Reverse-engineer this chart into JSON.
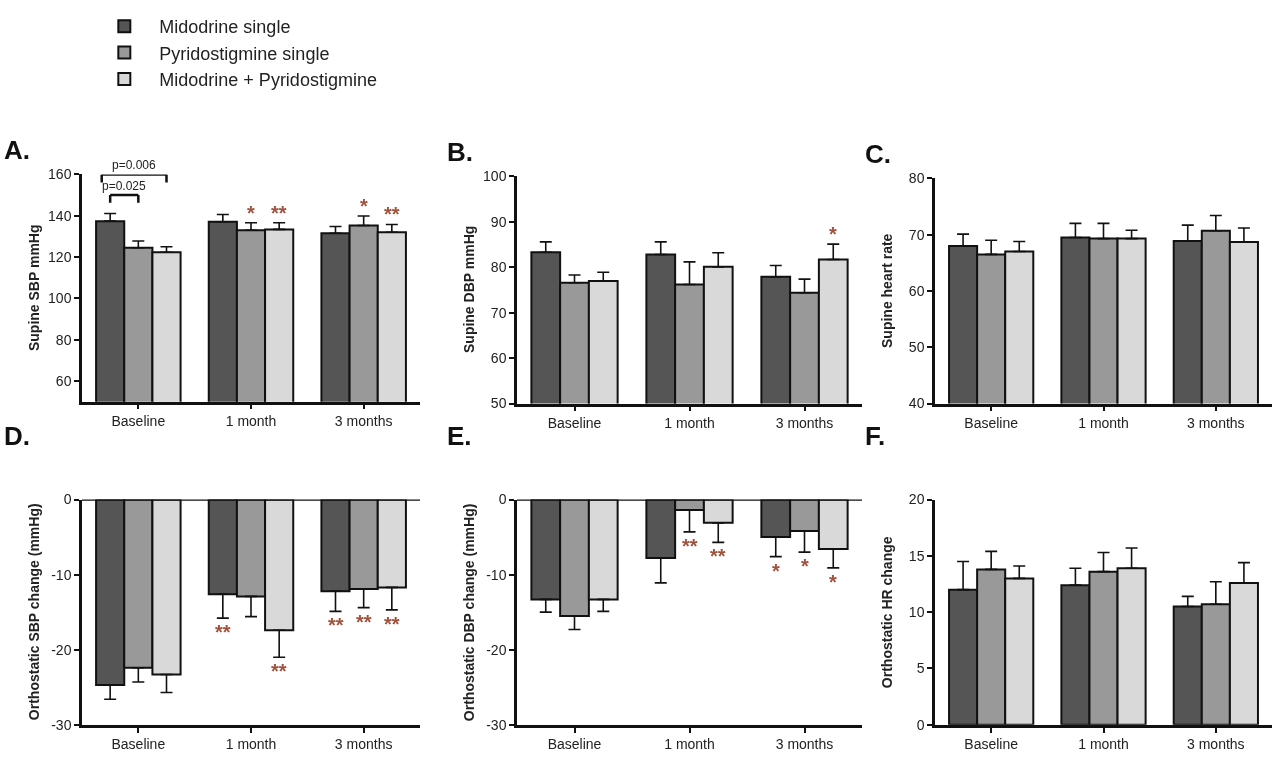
{
  "chart_data": [
    {
      "type": "bar",
      "title": "A.",
      "ylabel": "Supine SBP mmHg",
      "categories": [
        "Baseline",
        "1 month",
        "3 months"
      ],
      "ylim": [
        50,
        160
      ],
      "yticks": [
        60,
        80,
        100,
        120,
        140,
        160
      ],
      "legend": "top left",
      "series": [
        {
          "name": "Midodrine single",
          "color": "#555555",
          "values": [
            137.4,
            137.1,
            131.5
          ],
          "errors": [
            3.7,
            3.5,
            3.3
          ]
        },
        {
          "name": "Pyridostigmine single",
          "color": "#999999",
          "values": [
            124.5,
            133.0,
            135.3
          ],
          "errors": [
            3.3,
            3.6,
            4.6
          ]
        },
        {
          "name": "Midodrine + Pyridostigmine",
          "color": "#d9d9d9",
          "values": [
            122.3,
            133.4,
            132.0
          ],
          "errors": [
            2.7,
            3.2,
            3.8
          ]
        }
      ],
      "annotations": [
        "p=0.006",
        "p=0.025",
        "*",
        "**",
        "*",
        "**"
      ]
    },
    {
      "type": "bar",
      "title": "B.",
      "ylabel": "Supine DBP mmHg",
      "categories": [
        "Baseline",
        "1 month",
        "3 months"
      ],
      "ylim": [
        50,
        100
      ],
      "yticks": [
        50,
        60,
        70,
        80,
        90,
        100
      ],
      "series": [
        {
          "color": "#555555",
          "values": [
            83.3,
            82.8,
            77.9
          ],
          "errors": [
            2.3,
            2.8,
            2.5
          ]
        },
        {
          "color": "#999999",
          "values": [
            76.6,
            76.2,
            74.4
          ],
          "errors": [
            1.7,
            5.0,
            3.0
          ]
        },
        {
          "color": "#d9d9d9",
          "values": [
            77.0,
            80.1,
            81.7
          ],
          "errors": [
            1.9,
            3.1,
            3.4
          ]
        }
      ],
      "annotations": [
        "*"
      ]
    },
    {
      "type": "bar",
      "title": "C.",
      "ylabel": "Supine heart rate",
      "categories": [
        "Baseline",
        "1 month",
        "3 months"
      ],
      "ylim": [
        40,
        80
      ],
      "yticks": [
        40,
        50,
        60,
        70,
        80
      ],
      "series": [
        {
          "color": "#555555",
          "values": [
            68.0,
            69.5,
            68.9
          ],
          "errors": [
            2.1,
            2.5,
            2.8
          ]
        },
        {
          "color": "#999999",
          "values": [
            66.5,
            69.3,
            70.7
          ],
          "errors": [
            2.5,
            2.7,
            2.7
          ]
        },
        {
          "color": "#d9d9d9",
          "values": [
            67.0,
            69.3,
            68.7
          ],
          "errors": [
            1.8,
            1.5,
            2.5
          ]
        }
      ]
    },
    {
      "type": "bar",
      "title": "D.",
      "ylabel": "Orthostatic SBP change (mmHg)",
      "categories": [
        "Baseline",
        "1 month",
        "3 months"
      ],
      "ylim": [
        -30,
        0
      ],
      "yticks": [
        -30,
        -20,
        -10,
        0
      ],
      "series": [
        {
          "color": "#555555",
          "values": [
            -24.7,
            -12.6,
            -12.2
          ],
          "errors": [
            1.9,
            3.2,
            2.7
          ]
        },
        {
          "color": "#999999",
          "values": [
            -22.4,
            -12.9,
            -11.9
          ],
          "errors": [
            1.9,
            2.7,
            2.5
          ]
        },
        {
          "color": "#d9d9d9",
          "values": [
            -23.3,
            -17.4,
            -11.7
          ],
          "errors": [
            2.4,
            3.6,
            3.0
          ]
        }
      ],
      "annotations": [
        "**",
        "**",
        "**",
        "**",
        "**"
      ]
    },
    {
      "type": "bar",
      "title": "E.",
      "ylabel": "Orthostatic DBP change (mmHg)",
      "categories": [
        "Baseline",
        "1 month",
        "3 months"
      ],
      "ylim": [
        -30,
        0
      ],
      "yticks": [
        -30,
        -20,
        -10,
        0
      ],
      "series": [
        {
          "color": "#555555",
          "values": [
            -13.3,
            -7.8,
            -5.0
          ],
          "errors": [
            1.7,
            3.3,
            2.6
          ]
        },
        {
          "color": "#999999",
          "values": [
            -15.5,
            -1.4,
            -4.2
          ],
          "errors": [
            1.8,
            2.9,
            2.8
          ]
        },
        {
          "color": "#d9d9d9",
          "values": [
            -13.3,
            -3.1,
            -6.6
          ],
          "errors": [
            1.6,
            2.6,
            2.5
          ]
        }
      ],
      "annotations": [
        "**",
        "**",
        "*",
        "*",
        "*"
      ]
    },
    {
      "type": "bar",
      "title": "F.",
      "ylabel": "Orthostatic HR change",
      "categories": [
        "Baseline",
        "1 month",
        "3 months"
      ],
      "ylim": [
        0,
        20
      ],
      "yticks": [
        0,
        5,
        10,
        15,
        20
      ],
      "series": [
        {
          "color": "#555555",
          "values": [
            12.0,
            12.4,
            10.5
          ],
          "errors": [
            2.5,
            1.5,
            0.9
          ]
        },
        {
          "color": "#999999",
          "values": [
            13.8,
            13.6,
            10.7
          ],
          "errors": [
            1.6,
            1.7,
            2.0
          ]
        },
        {
          "color": "#d9d9d9",
          "values": [
            13.0,
            13.9,
            12.6
          ],
          "errors": [
            1.1,
            1.8,
            1.8
          ]
        }
      ]
    }
  ]
}
